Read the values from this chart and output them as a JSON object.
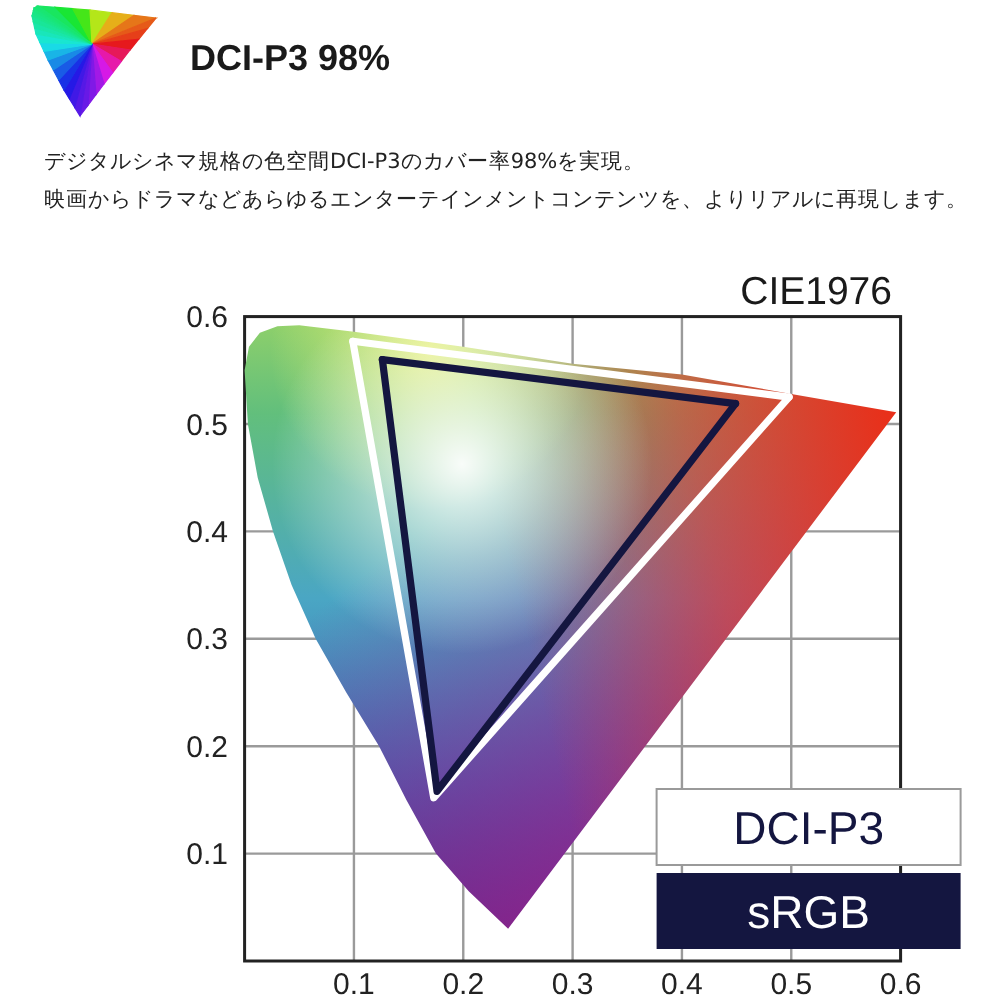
{
  "chart_data": {
    "type": "line",
    "title": "DCI-P3 98%",
    "subtitle": "デジタルシネマ規格の色空間DCI-P3のカバー率98%を実現。映画からドラマなどあらゆるエンターテインメントコンテンツを、よりリアルに再現します。",
    "annotations": [
      "CIE1976"
    ],
    "xlim": [
      0,
      0.6
    ],
    "ylim": [
      0,
      0.6
    ],
    "xticks": [
      0.1,
      0.2,
      0.3,
      0.4,
      0.5,
      0.6
    ],
    "yticks": [
      0.1,
      0.2,
      0.3,
      0.4,
      0.5,
      0.6
    ],
    "grid": true,
    "legend": "bottom right",
    "series": [
      {
        "type": "area",
        "x": [
          0.241,
          0.205,
          0.175,
          0.148,
          0.123,
          0.093,
          0.065,
          0.043,
          0.026,
          0.012,
          0.003,
          0.0,
          0.004,
          0.014,
          0.03,
          0.05,
          0.1,
          0.2,
          0.3,
          0.4,
          0.5,
          0.596,
          0.241
        ],
        "values": [
          0.03,
          0.065,
          0.1,
          0.15,
          0.2,
          0.25,
          0.3,
          0.35,
          0.4,
          0.45,
          0.5,
          0.55,
          0.572,
          0.585,
          0.591,
          0.592,
          0.586,
          0.572,
          0.556,
          0.546,
          0.528,
          0.511,
          0.03
        ]
      },
      {
        "name": "DCI-P3",
        "color": "#ffffff",
        "x": [
          0.099,
          0.173,
          0.498
        ],
        "values": [
          0.577,
          0.152,
          0.525
        ]
      },
      {
        "color": "#ffffff",
        "x": [
          0.099,
          0.498
        ],
        "values": [
          0.577,
          0.525
        ]
      },
      {
        "name": "sRGB",
        "color": "#141640",
        "x": [
          0.126,
          0.176,
          0.449
        ],
        "values": [
          0.56,
          0.158,
          0.519
        ]
      },
      {
        "color": "#141640",
        "x": [
          0.126,
          0.449
        ],
        "values": [
          0.56,
          0.519
        ]
      }
    ]
  }
}
